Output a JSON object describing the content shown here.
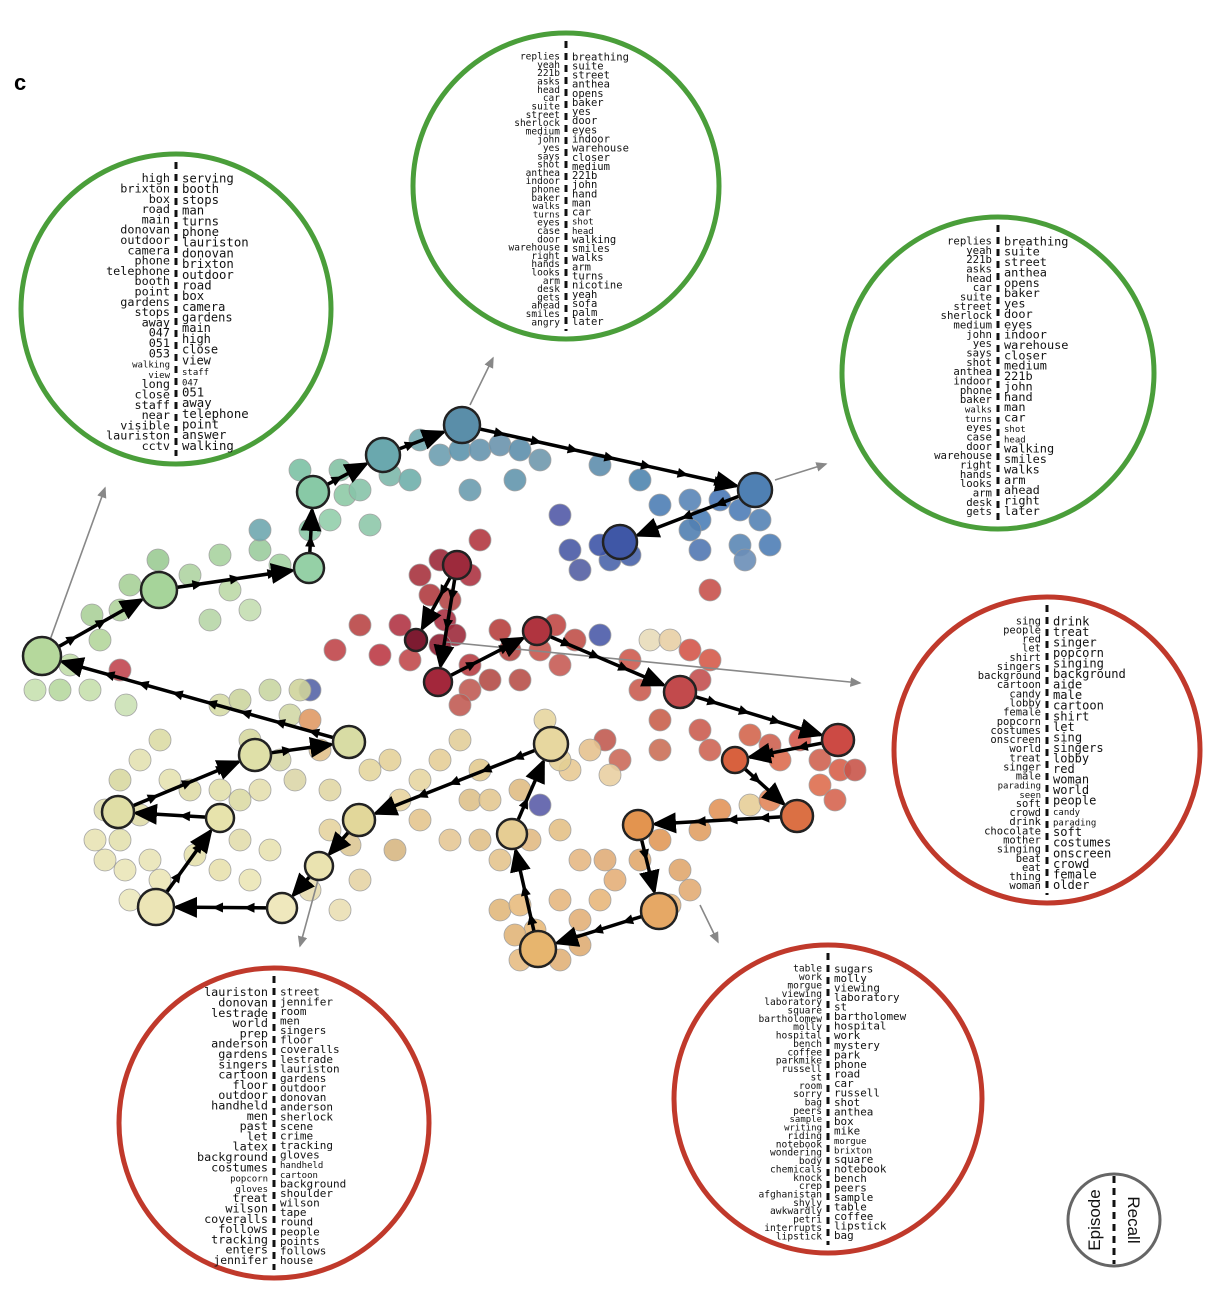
{
  "panel_label": "c",
  "legend": {
    "left": "Episode",
    "right": "Recall",
    "color": "#666666"
  },
  "colors": {
    "green_ring": "#4a9e3a",
    "red_ring": "#c0392b",
    "arrow": "#000000",
    "pointer": "#888888"
  },
  "word_clouds": [
    {
      "id": "top-left",
      "ring": "green",
      "left_words": [
        "high",
        "brixton",
        "box",
        "road",
        "main",
        "donovan",
        "outdoor",
        "camera",
        "phone",
        "telephone",
        "booth",
        "point",
        "gardens",
        "stops",
        "away",
        "047",
        "051",
        "053",
        "walking",
        "view",
        "long",
        "close",
        "staff",
        "near",
        "visible",
        "lauriston",
        "cctv"
      ],
      "right_words": [
        "serving",
        "booth",
        "stops",
        "man",
        "turns",
        "phone",
        "lauriston",
        "donovan",
        "brixton",
        "outdoor",
        "road",
        "box",
        "camera",
        "gardens",
        "main",
        "high",
        "close",
        "view",
        "staff",
        "047",
        "051",
        "away",
        "telephone",
        "point",
        "answer",
        "walking"
      ]
    },
    {
      "id": "top-center",
      "ring": "green",
      "left_words": [
        "replies",
        "yeah",
        "221b",
        "asks",
        "head",
        "car",
        "suite",
        "street",
        "sherlock",
        "medium",
        "john",
        "yes",
        "says",
        "shot",
        "anthea",
        "indoor",
        "phone",
        "baker",
        "walks",
        "turns",
        "eyes",
        "case",
        "door",
        "warehouse",
        "right",
        "hands",
        "looks",
        "arm",
        "desk",
        "gets",
        "ahead",
        "smiles",
        "angry"
      ],
      "right_words": [
        "breathing",
        "suite",
        "street",
        "anthea",
        "opens",
        "baker",
        "yes",
        "door",
        "eyes",
        "indoor",
        "warehouse",
        "closer",
        "medium",
        "221b",
        "john",
        "hand",
        "man",
        "car",
        "shot",
        "head",
        "walking",
        "smiles",
        "walks",
        "arm",
        "turns",
        "nicotine",
        "yeah",
        "sofa",
        "palm",
        "later"
      ]
    },
    {
      "id": "right-upper",
      "ring": "green",
      "left_words": [
        "replies",
        "yeah",
        "221b",
        "asks",
        "head",
        "car",
        "suite",
        "street",
        "sherlock",
        "medium",
        "john",
        "yes",
        "says",
        "shot",
        "anthea",
        "indoor",
        "phone",
        "baker",
        "walks",
        "turns",
        "eyes",
        "case",
        "door",
        "warehouse",
        "right",
        "hands",
        "looks",
        "arm",
        "desk",
        "gets"
      ],
      "right_words": [
        "breathing",
        "suite",
        "street",
        "anthea",
        "opens",
        "baker",
        "yes",
        "door",
        "eyes",
        "indoor",
        "warehouse",
        "closer",
        "medium",
        "221b",
        "john",
        "hand",
        "man",
        "car",
        "shot",
        "head",
        "walking",
        "smiles",
        "walks",
        "arm",
        "ahead",
        "right",
        "later"
      ]
    },
    {
      "id": "right-middle",
      "ring": "red",
      "left_words": [
        "sing",
        "people",
        "red",
        "let",
        "shirt",
        "singers",
        "background",
        "cartoon",
        "candy",
        "lobby",
        "female",
        "popcorn",
        "costumes",
        "onscreen",
        "world",
        "treat",
        "singer",
        "male",
        "parading",
        "seen",
        "soft",
        "crowd",
        "drink",
        "chocolate",
        "mother",
        "singing",
        "beat",
        "eat",
        "thing",
        "woman"
      ],
      "right_words": [
        "drink",
        "treat",
        "singer",
        "popcorn",
        "singing",
        "background",
        "aide",
        "male",
        "cartoon",
        "shirt",
        "let",
        "sing",
        "singers",
        "lobby",
        "red",
        "woman",
        "world",
        "people",
        "candy",
        "parading",
        "soft",
        "costumes",
        "onscreen",
        "crowd",
        "female",
        "older"
      ]
    },
    {
      "id": "bottom-left",
      "ring": "red",
      "left_words": [
        "lauriston",
        "donovan",
        "lestrade",
        "world",
        "prep",
        "anderson",
        "gardens",
        "singers",
        "cartoon",
        "floor",
        "outdoor",
        "handheld",
        "men",
        "past",
        "let",
        "latex",
        "background",
        "costumes",
        "popcorn",
        "gloves",
        "treat",
        "wilson",
        "coveralls",
        "follows",
        "tracking",
        "enters",
        "jennifer"
      ],
      "right_words": [
        "street",
        "jennifer",
        "room",
        "men",
        "singers",
        "floor",
        "coveralls",
        "lestrade",
        "lauriston",
        "gardens",
        "outdoor",
        "donovan",
        "anderson",
        "sherlock",
        "scene",
        "crime",
        "tracking",
        "gloves",
        "handheld",
        "cartoon",
        "background",
        "shoulder",
        "wilson",
        "tape",
        "round",
        "people",
        "points",
        "follows",
        "house"
      ]
    },
    {
      "id": "bottom-right",
      "ring": "red",
      "left_words": [
        "table",
        "work",
        "morgue",
        "viewing",
        "laboratory",
        "square",
        "bartholomew",
        "molly",
        "hospital",
        "bench",
        "coffee",
        "parkmike",
        "russell",
        "st",
        "room",
        "sorry",
        "bag",
        "peers",
        "sample",
        "writing",
        "riding",
        "notebook",
        "wondering",
        "body",
        "chemicals",
        "knock",
        "crep",
        "afghanistan",
        "shyly",
        "awkwardly",
        "petri",
        "interrupts",
        "lipstick"
      ],
      "right_words": [
        "sugars",
        "molly",
        "viewing",
        "laboratory",
        "st",
        "bartholomew",
        "hospital",
        "work",
        "mystery",
        "park",
        "phone",
        "road",
        "car",
        "russell",
        "shot",
        "anthea",
        "box",
        "mike",
        "morgue",
        "brixton",
        "square",
        "notebook",
        "bench",
        "peers",
        "sample",
        "table",
        "coffee",
        "lipstick",
        "bag"
      ]
    }
  ]
}
